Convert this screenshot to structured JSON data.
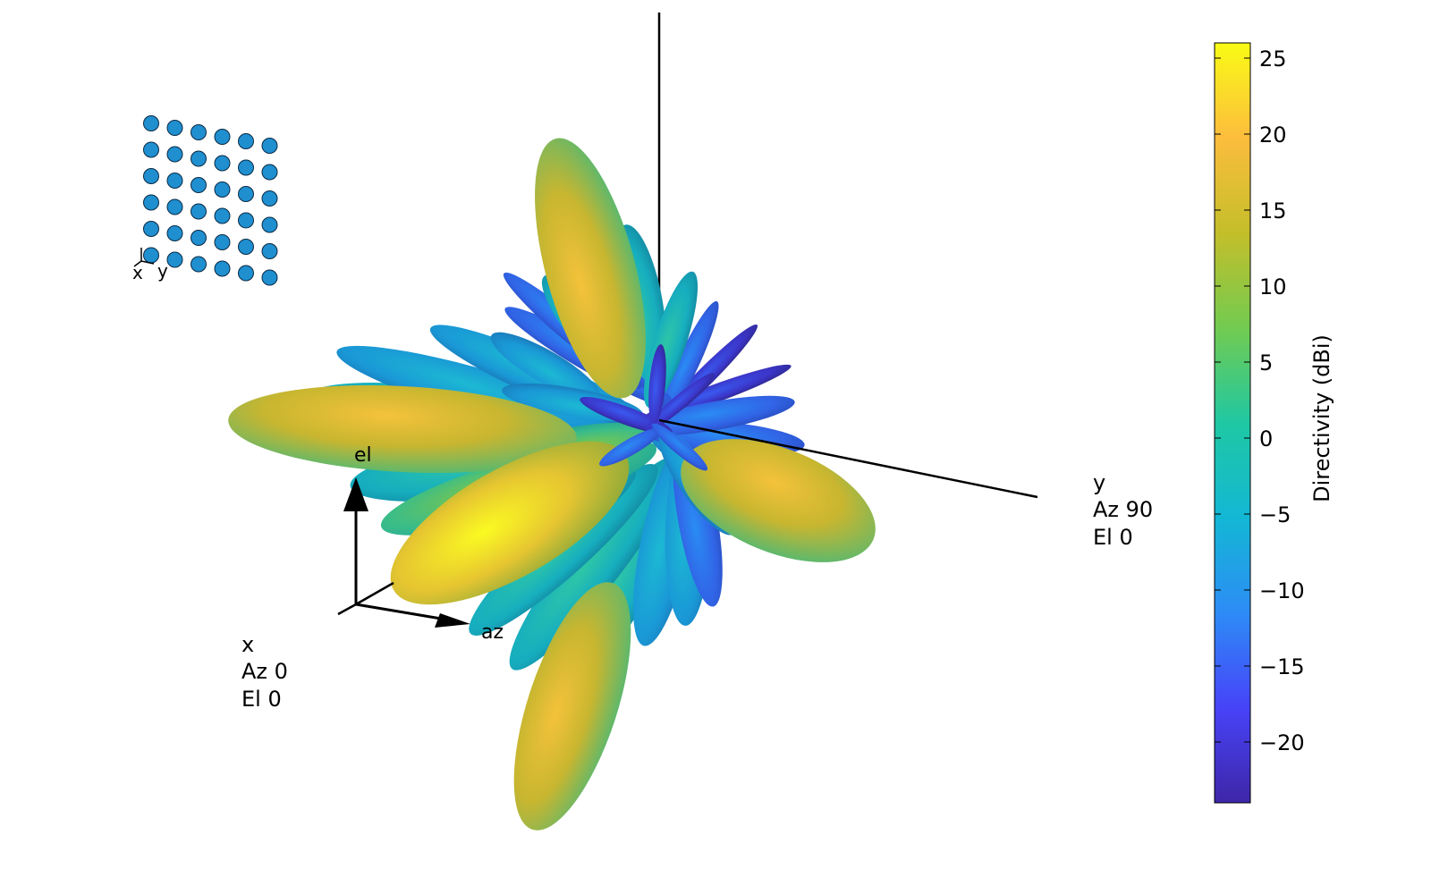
{
  "chart_data": {
    "type": "3d-radiation-pattern",
    "colorbar": {
      "label": "Directivity (dBi)",
      "range": [
        -24,
        26
      ],
      "ticks": [
        -20,
        -15,
        -10,
        -5,
        0,
        5,
        10,
        15,
        20,
        25
      ],
      "tick_labels": [
        "−20",
        "−15",
        "−10",
        "−5",
        "0",
        "5",
        "10",
        "15",
        "20",
        "25"
      ],
      "colormap": [
        "#3e26a8",
        "#4743f8",
        "#2d8cf6",
        "#13b7d4",
        "#1fc8a3",
        "#72cb50",
        "#c4be2a",
        "#fcbd3d",
        "#f9fb15"
      ]
    },
    "axes": {
      "x": {
        "name": "x",
        "az_label": "Az 0",
        "el_label": "El 0"
      },
      "y": {
        "name": "y",
        "az_label": "Az 90",
        "el_label": "El 0"
      },
      "az_arrow_label": "az",
      "el_arrow_label": "el"
    },
    "array": {
      "rows": 6,
      "columns": 6,
      "element_count": 36,
      "element_color": "#1f8fd0",
      "orientation_labels": [
        "x",
        "y"
      ]
    },
    "main_lobes": [
      {
        "direction": "left",
        "peak_dbi": 18
      },
      {
        "direction": "front-left",
        "peak_dbi": 26
      },
      {
        "direction": "up",
        "peak_dbi": 17
      },
      {
        "direction": "down",
        "peak_dbi": 15
      },
      {
        "direction": "right",
        "peak_dbi": 18
      }
    ]
  }
}
